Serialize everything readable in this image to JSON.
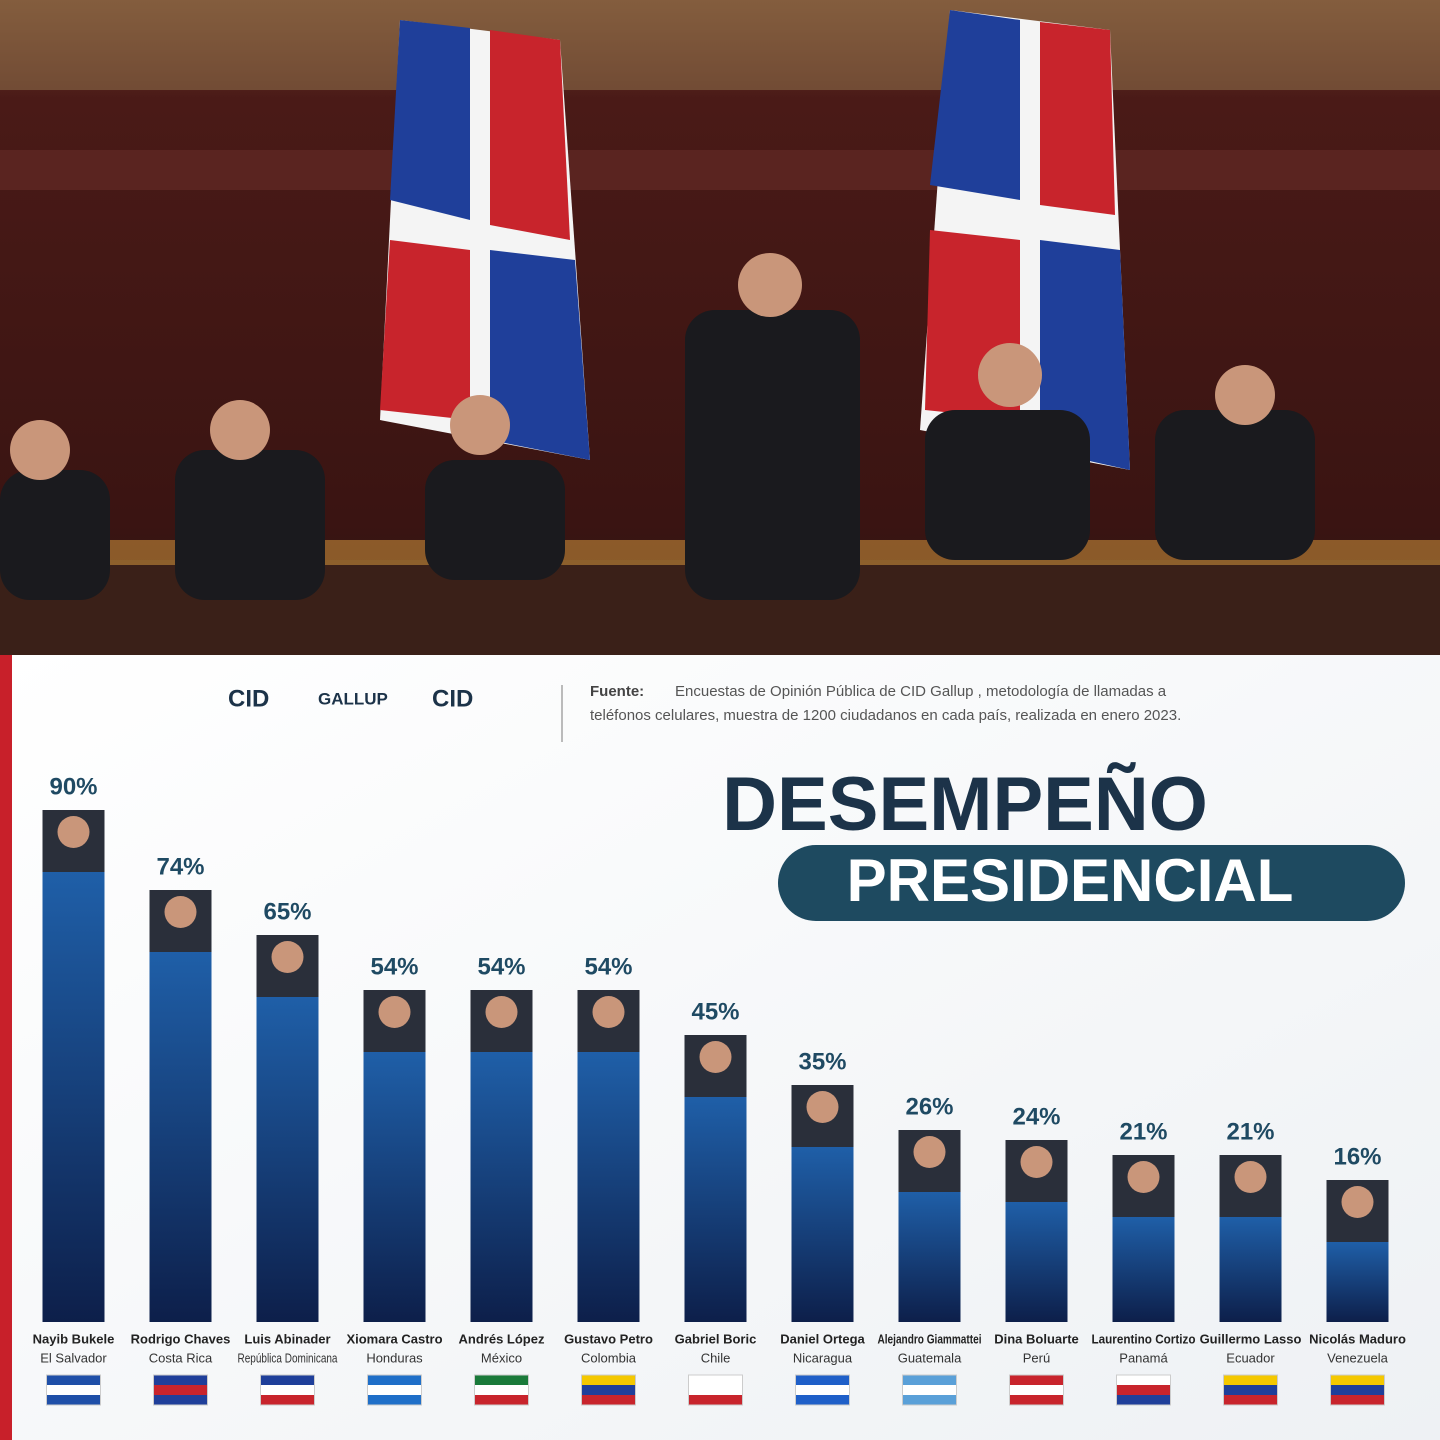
{
  "chart_data": {
    "type": "bar",
    "title": "DESEMPEÑO",
    "subtitle": "PRESIDENCIAL",
    "logos": [
      "CID",
      "GALLUP",
      "CID"
    ],
    "source_label": "Fuente:",
    "source": [
      "Encuestas de Opinión Pública de CID Gallup , metodología de llamadas a",
      "teléfonos celulares, muestra de 1200 ciudadanos en cada país, realizada en enero 2023."
    ],
    "categories": [
      "Nayib Bukele",
      "Rodrigo Chaves",
      "Luis Abinader",
      "Xiomara Castro",
      "Andrés López",
      "Gustavo Petro",
      "Gabriel Boric",
      "Daniel Ortega",
      "Alejandro Giammattei",
      "Dina Boluarte",
      "Laurentino Cortizo",
      "Guillermo Lasso",
      "Nicolás Maduro"
    ],
    "countries": [
      "El Salvador",
      "Costa Rica",
      "República Dominicana",
      "Honduras",
      "México",
      "Colombia",
      "Chile",
      "Nicaragua",
      "Guatemala",
      "Perú",
      "Panamá",
      "Ecuador",
      "Venezuela"
    ],
    "values": [
      90,
      74,
      65,
      54,
      54,
      54,
      45,
      35,
      26,
      24,
      21,
      21,
      16
    ],
    "value_labels": [
      "90%",
      "74%",
      "65%",
      "54%",
      "54%",
      "54%",
      "45%",
      "35%",
      "26%",
      "24%",
      "21%",
      "21%",
      "16%"
    ],
    "color": "#1f5fa8"
  }
}
